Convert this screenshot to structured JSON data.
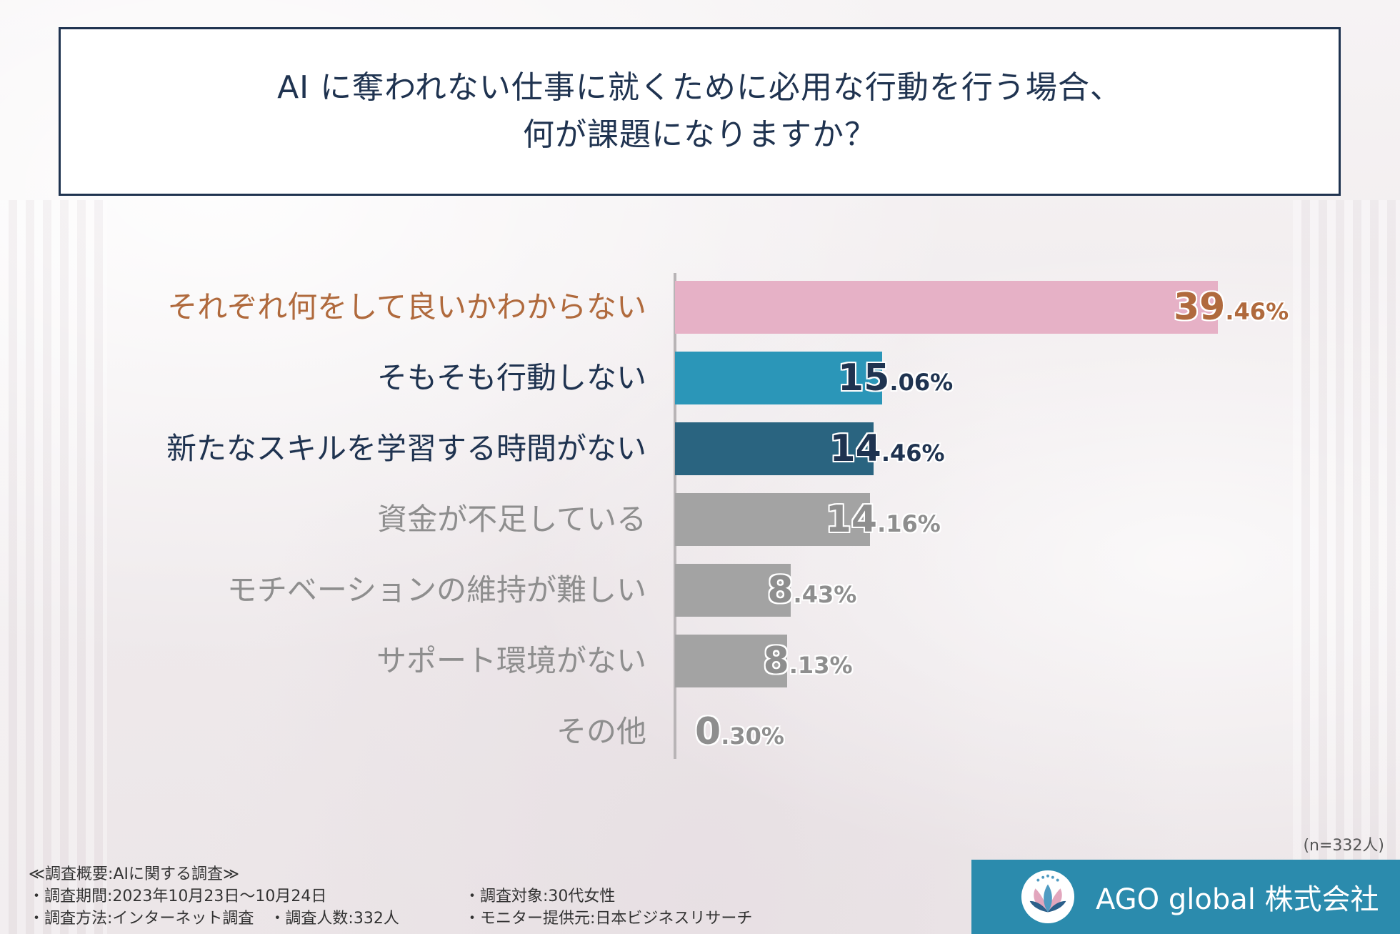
{
  "title": {
    "line1": "AI に奪われない仕事に就くために必用な行動を行う場合、",
    "line2": "何が課題になりますか？"
  },
  "chart_data": {
    "type": "bar",
    "orientation": "horizontal",
    "categories": [
      "それぞれ何をして良いかわからない",
      "そもそも行動しない",
      "新たなスキルを学習する時間がない",
      "資金が不足している",
      "モチベーションの維持が難しい",
      "サポート環境がない",
      "その他"
    ],
    "values": [
      39.46,
      15.06,
      14.46,
      14.16,
      8.43,
      8.13,
      0.3
    ],
    "value_labels": [
      {
        "int": "39",
        "dec": ".46%"
      },
      {
        "int": "15",
        "dec": ".06%"
      },
      {
        "int": "14",
        "dec": ".46%"
      },
      {
        "int": "14",
        "dec": ".16%"
      },
      {
        "int": "8",
        "dec": ".43%"
      },
      {
        "int": "8",
        "dec": ".13%"
      },
      {
        "int": "0",
        "dec": ".30%"
      }
    ],
    "bar_colors": [
      "#e6b1c6",
      "#2b96b8",
      "#2a6480",
      "#a3a3a3",
      "#a3a3a3",
      "#a3a3a3",
      "#a3a3a3"
    ],
    "label_colors": [
      "#b06a3d",
      "#1f3350",
      "#1f3350",
      "#8e8e8e",
      "#8e8e8e",
      "#8e8e8e",
      "#8e8e8e"
    ],
    "value_colors": [
      "#b06a3d",
      "#1f3350",
      "#1f3350",
      "#8e8e8e",
      "#8e8e8e",
      "#8e8e8e",
      "#8e8e8e"
    ],
    "xlim": [
      0,
      41
    ]
  },
  "sample": "(n=332人)",
  "summary": {
    "heading": "≪調査概要:AIに関する調査≫",
    "period": "・調査期間:2023年10月23日〜10月24日",
    "method": "・調査方法:インターネット調査　・調査人数:332人",
    "target": "・調査対象:30代女性",
    "provider": "・モニター提供元:日本ビジネスリサーチ"
  },
  "brand": {
    "name": "AGO global 株式会社",
    "color": "#2b8bad",
    "logo_icon": "lotus-logo-icon"
  }
}
